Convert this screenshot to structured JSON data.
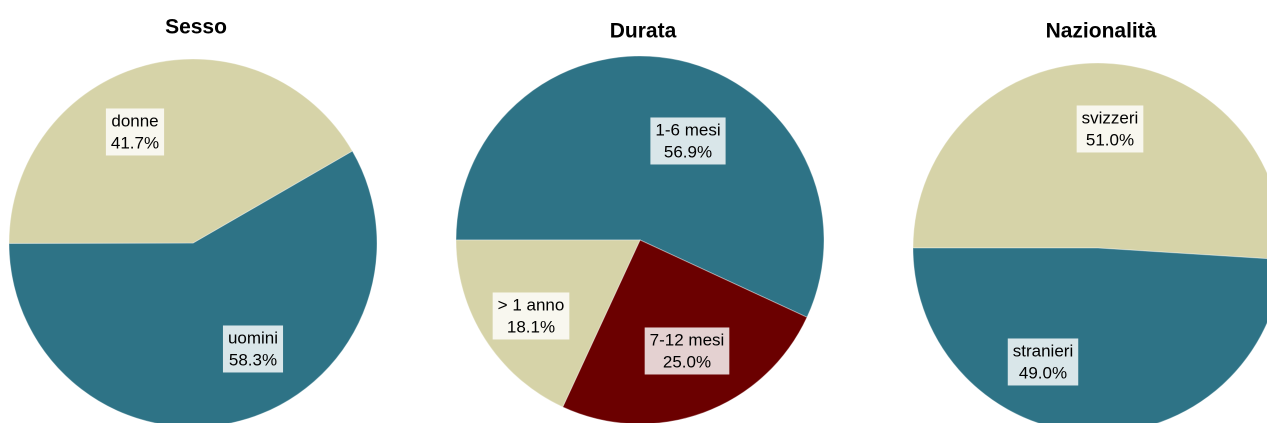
{
  "chart_data": [
    {
      "type": "pie",
      "title": "Sesso",
      "categories": [
        "uomini",
        "donne"
      ],
      "values": [
        58.3,
        41.7
      ],
      "value_labels": [
        "58.3%",
        "41.7%"
      ],
      "colors": [
        "#2e7386",
        "#d6d3a8"
      ]
    },
    {
      "type": "pie",
      "title": "Durata",
      "categories": [
        "1-6 mesi",
        "7-12 mesi",
        "> 1 anno"
      ],
      "values": [
        56.9,
        25.0,
        18.1
      ],
      "value_labels": [
        "56.9%",
        "25.0%",
        "18.1%"
      ],
      "colors": [
        "#2e7386",
        "#6b0000",
        "#d6d3a8"
      ]
    },
    {
      "type": "pie",
      "title": "Nazionalità",
      "categories": [
        "svizzeri",
        "stranieri"
      ],
      "values": [
        51.0,
        49.0
      ],
      "value_labels": [
        "51.0%",
        "49.0%"
      ],
      "colors": [
        "#d6d3a8",
        "#2e7386"
      ]
    }
  ]
}
